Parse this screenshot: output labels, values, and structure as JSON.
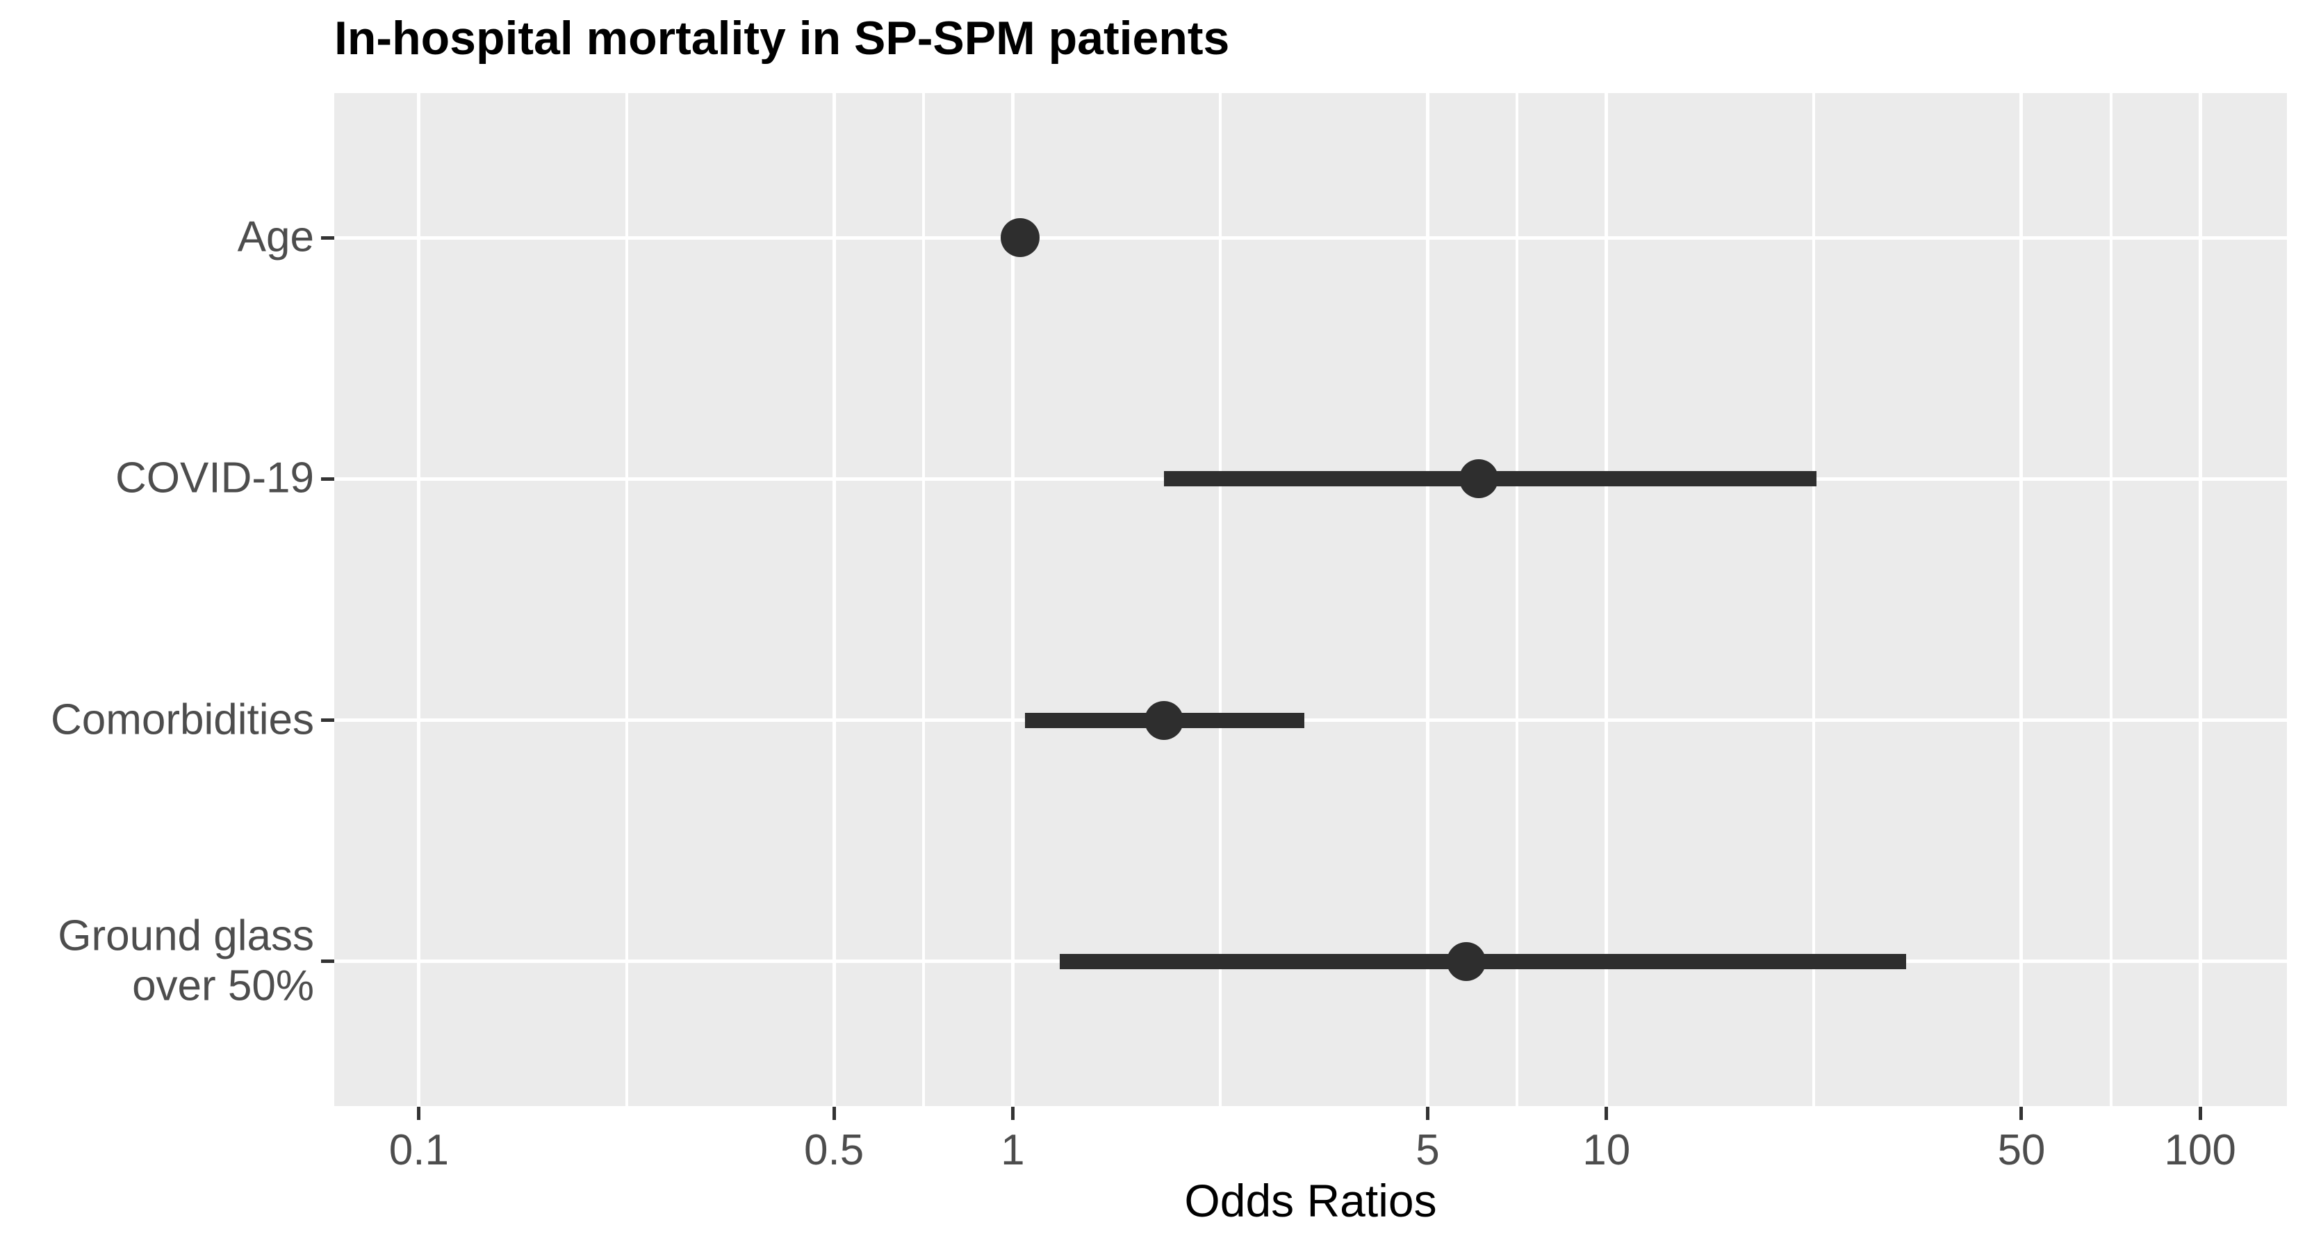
{
  "title": "In-hospital mortality in SP-SPM patients",
  "chart_data": {
    "type": "scatter",
    "subtype": "forest-plot",
    "title": "In-hospital mortality in SP-SPM patients",
    "xlabel": "Odds Ratios",
    "ylabel": "",
    "x_scale": "log10",
    "xlim": [
      0.072,
      140
    ],
    "grid": "major white gridlines on gray panel, minor x gridlines at log-midpoints, ggplot-style",
    "legend": "none",
    "x_ticks": [
      {
        "v": 0.1,
        "label": "0.1"
      },
      {
        "v": 0.5,
        "label": "0.5"
      },
      {
        "v": 1,
        "label": "1"
      },
      {
        "v": 5,
        "label": "5"
      },
      {
        "v": 10,
        "label": "10"
      },
      {
        "v": 50,
        "label": "50"
      },
      {
        "v": 100,
        "label": "100"
      }
    ],
    "points": [
      {
        "category": "Age",
        "or": 1.03,
        "ci_low": 0.99,
        "ci_high": 1.07
      },
      {
        "category": "COVID-19",
        "or": 6.1,
        "ci_low": 1.8,
        "ci_high": 22.6
      },
      {
        "category": "Comorbidities",
        "or": 1.8,
        "ci_low": 1.05,
        "ci_high": 3.1
      },
      {
        "category": "Ground glass\nover 50%",
        "or": 5.8,
        "ci_low": 1.2,
        "ci_high": 32
      }
    ]
  },
  "colors": {
    "background": "#ffffff",
    "panel_background": "#ebebeb",
    "gridline": "#ffffff",
    "marker": "#2e2e2e",
    "tick_mark": "#333333",
    "axis_text": "#4d4d4d",
    "title_text": "#000000"
  }
}
